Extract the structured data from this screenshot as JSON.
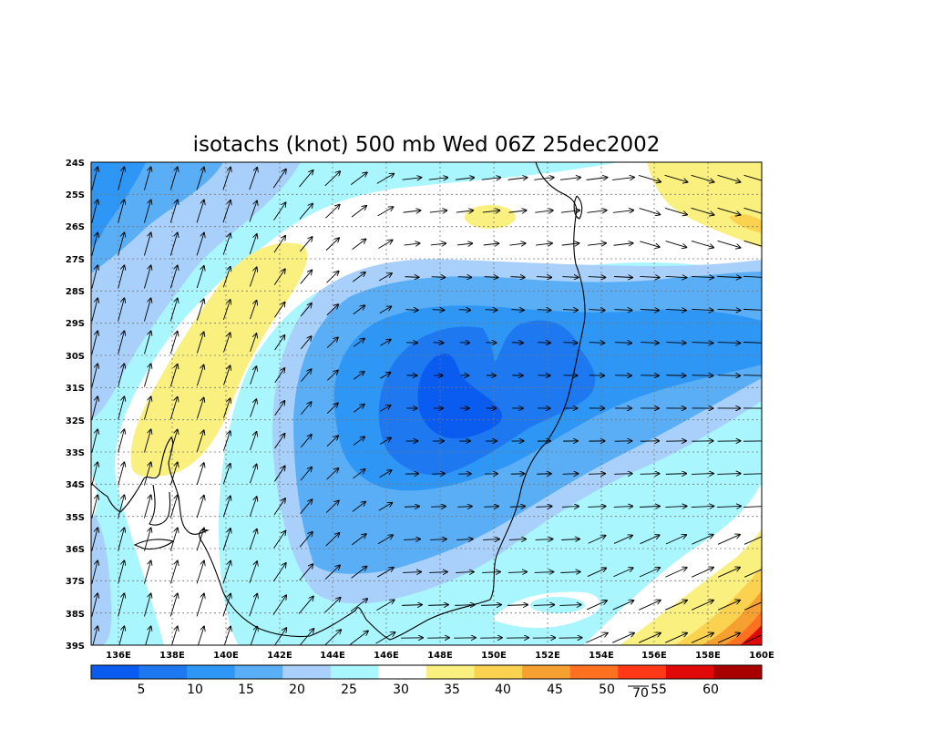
{
  "title": "isotachs (knot) 500 mb Wed 06Z 25dec2002",
  "lat_ticks": [
    "24S",
    "25S",
    "26S",
    "27S",
    "28S",
    "29S",
    "30S",
    "31S",
    "32S",
    "33S",
    "34S",
    "35S",
    "36S",
    "37S",
    "38S",
    "39S"
  ],
  "lon_ticks": [
    "136E",
    "138E",
    "140E",
    "142E",
    "144E",
    "146E",
    "148E",
    "150E",
    "152E",
    "154E",
    "156E",
    "158E",
    "160E"
  ],
  "colorbar": {
    "labels": [
      "5",
      "10",
      "15",
      "20",
      "25",
      "30",
      "35",
      "40",
      "45",
      "50",
      "55",
      "60"
    ],
    "colors": [
      "#0a5cf0",
      "#1e78f0",
      "#2e96f5",
      "#5aaef5",
      "#a8d0fa",
      "#aaf6ff",
      "#ffffff",
      "#faf080",
      "#fad250",
      "#f5a030",
      "#ff7020",
      "#ff3818",
      "#e00808",
      "#a80000"
    ],
    "stray_label": "70"
  },
  "map": {
    "lon_range": [
      135,
      160
    ],
    "lat_range": [
      -39,
      -24
    ],
    "features": [
      "isotach shading",
      "wind vectors",
      "coastline of southeastern Australia",
      "dotted lat/lon grid"
    ]
  }
}
